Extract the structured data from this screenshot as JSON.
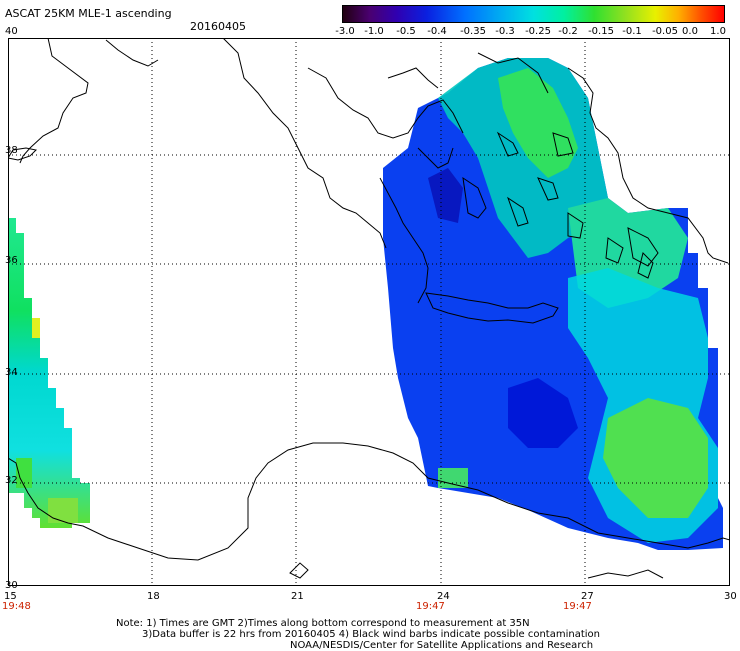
{
  "header": {
    "title": "ASCAT 25KM MLE-1 ascending",
    "date": "20160405"
  },
  "colorbar": {
    "ticks": [
      "-3.0",
      "-1.0",
      "-0.5",
      "-0.4",
      "-0.35",
      "-0.3",
      "-0.25",
      "-0.2",
      "-0.15",
      "-0.1",
      "-0.05",
      "0.0",
      "1.0"
    ]
  },
  "axes": {
    "lat_labels": [
      "40",
      "38",
      "36",
      "34",
      "32",
      "30"
    ],
    "lon_labels": [
      "15",
      "18",
      "21",
      "24",
      "27",
      "30"
    ],
    "time_labels": [
      "19:48",
      "19:47",
      "19:47"
    ]
  },
  "notes": {
    "line1": "Note: 1) Times are GMT 2)Times along bottom correspond to measurement at 35N",
    "line2": "3)Data buffer is 22 hrs from 20160405 4) Black wind barbs indicate possible contamination",
    "line3": "NOAA/NESDIS/Center for Satellite Applications and Research"
  }
}
